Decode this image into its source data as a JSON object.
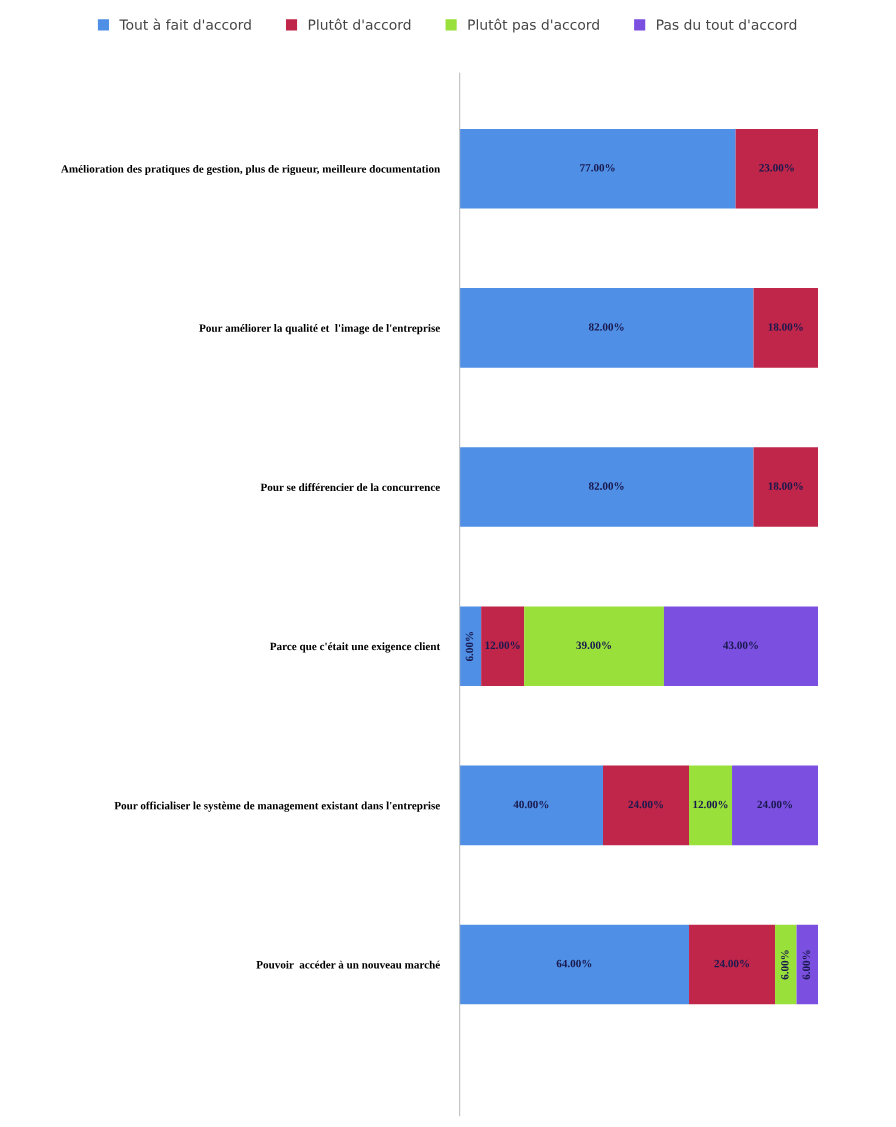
{
  "chart_data": {
    "type": "bar",
    "orientation": "horizontal",
    "stacked": true,
    "categories": [
      "Amélioration des pratiques de gestion, plus de rigueur, meilleure documentation",
      "Pour améliorer la qualité et  l'image de l'entreprise",
      "Pour se différencier de la concurrence",
      "Parce que c'était une exigence client",
      "Pour officialiser le système de management existant dans l'entreprise",
      "Pouvoir  accéder à un nouveau marché"
    ],
    "series": [
      {
        "name": "Tout à fait d'accord",
        "color": "#4f8fe6",
        "values": [
          77,
          82,
          82,
          6,
          40,
          64
        ],
        "value_labels": [
          "77.00%",
          "82.00%",
          "82.00%",
          "6.00%",
          "40.00%",
          "64.00%"
        ]
      },
      {
        "name": "Plutôt d'accord",
        "color": "#c0254a",
        "values": [
          23,
          18,
          18,
          12,
          24,
          24
        ],
        "value_labels": [
          "23.00%",
          "18.00%",
          "18.00%",
          "12.00%",
          "24.00%",
          "24.00%"
        ]
      },
      {
        "name": "Plutôt pas d'accord",
        "color": "#99e03a",
        "values": [
          null,
          null,
          null,
          39,
          12,
          6
        ],
        "value_labels": [
          null,
          null,
          null,
          "39.00%",
          "12.00%",
          "6.00%"
        ]
      },
      {
        "name": "Pas du tout d'accord",
        "color": "#7b4fe0",
        "values": [
          null,
          null,
          null,
          43,
          24,
          6
        ],
        "value_labels": [
          null,
          null,
          null,
          "43.00%",
          "24.00%",
          "6.00%"
        ]
      }
    ],
    "xlim": [
      0,
      100
    ],
    "tick_labels": "y",
    "grid": false,
    "legend": "top"
  }
}
